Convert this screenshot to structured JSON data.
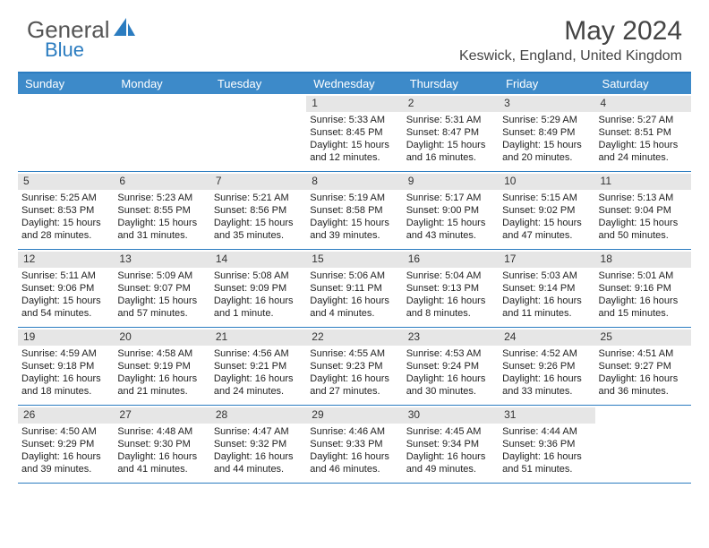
{
  "logo": {
    "word1": "General",
    "word2": "Blue",
    "word1_color": "#555555",
    "word2_color": "#2b7cc0"
  },
  "title": "May 2024",
  "location": "Keswick, England, United Kingdom",
  "header_bg": "#3d8ac9",
  "border_color": "#2b7cc0",
  "daynum_bg": "#e6e6e6",
  "day_names": [
    "Sunday",
    "Monday",
    "Tuesday",
    "Wednesday",
    "Thursday",
    "Friday",
    "Saturday"
  ],
  "weeks": [
    [
      {
        "blank": true
      },
      {
        "blank": true
      },
      {
        "blank": true
      },
      {
        "n": "1",
        "sr": "5:33 AM",
        "ss": "8:45 PM",
        "dh": "15",
        "dm": "12"
      },
      {
        "n": "2",
        "sr": "5:31 AM",
        "ss": "8:47 PM",
        "dh": "15",
        "dm": "16"
      },
      {
        "n": "3",
        "sr": "5:29 AM",
        "ss": "8:49 PM",
        "dh": "15",
        "dm": "20"
      },
      {
        "n": "4",
        "sr": "5:27 AM",
        "ss": "8:51 PM",
        "dh": "15",
        "dm": "24"
      }
    ],
    [
      {
        "n": "5",
        "sr": "5:25 AM",
        "ss": "8:53 PM",
        "dh": "15",
        "dm": "28"
      },
      {
        "n": "6",
        "sr": "5:23 AM",
        "ss": "8:55 PM",
        "dh": "15",
        "dm": "31"
      },
      {
        "n": "7",
        "sr": "5:21 AM",
        "ss": "8:56 PM",
        "dh": "15",
        "dm": "35"
      },
      {
        "n": "8",
        "sr": "5:19 AM",
        "ss": "8:58 PM",
        "dh": "15",
        "dm": "39"
      },
      {
        "n": "9",
        "sr": "5:17 AM",
        "ss": "9:00 PM",
        "dh": "15",
        "dm": "43"
      },
      {
        "n": "10",
        "sr": "5:15 AM",
        "ss": "9:02 PM",
        "dh": "15",
        "dm": "47"
      },
      {
        "n": "11",
        "sr": "5:13 AM",
        "ss": "9:04 PM",
        "dh": "15",
        "dm": "50"
      }
    ],
    [
      {
        "n": "12",
        "sr": "5:11 AM",
        "ss": "9:06 PM",
        "dh": "15",
        "dm": "54"
      },
      {
        "n": "13",
        "sr": "5:09 AM",
        "ss": "9:07 PM",
        "dh": "15",
        "dm": "57"
      },
      {
        "n": "14",
        "sr": "5:08 AM",
        "ss": "9:09 PM",
        "dh": "16",
        "dm": "1",
        "dms": "minute"
      },
      {
        "n": "15",
        "sr": "5:06 AM",
        "ss": "9:11 PM",
        "dh": "16",
        "dm": "4"
      },
      {
        "n": "16",
        "sr": "5:04 AM",
        "ss": "9:13 PM",
        "dh": "16",
        "dm": "8"
      },
      {
        "n": "17",
        "sr": "5:03 AM",
        "ss": "9:14 PM",
        "dh": "16",
        "dm": "11"
      },
      {
        "n": "18",
        "sr": "5:01 AM",
        "ss": "9:16 PM",
        "dh": "16",
        "dm": "15"
      }
    ],
    [
      {
        "n": "19",
        "sr": "4:59 AM",
        "ss": "9:18 PM",
        "dh": "16",
        "dm": "18"
      },
      {
        "n": "20",
        "sr": "4:58 AM",
        "ss": "9:19 PM",
        "dh": "16",
        "dm": "21"
      },
      {
        "n": "21",
        "sr": "4:56 AM",
        "ss": "9:21 PM",
        "dh": "16",
        "dm": "24"
      },
      {
        "n": "22",
        "sr": "4:55 AM",
        "ss": "9:23 PM",
        "dh": "16",
        "dm": "27"
      },
      {
        "n": "23",
        "sr": "4:53 AM",
        "ss": "9:24 PM",
        "dh": "16",
        "dm": "30"
      },
      {
        "n": "24",
        "sr": "4:52 AM",
        "ss": "9:26 PM",
        "dh": "16",
        "dm": "33"
      },
      {
        "n": "25",
        "sr": "4:51 AM",
        "ss": "9:27 PM",
        "dh": "16",
        "dm": "36"
      }
    ],
    [
      {
        "n": "26",
        "sr": "4:50 AM",
        "ss": "9:29 PM",
        "dh": "16",
        "dm": "39"
      },
      {
        "n": "27",
        "sr": "4:48 AM",
        "ss": "9:30 PM",
        "dh": "16",
        "dm": "41"
      },
      {
        "n": "28",
        "sr": "4:47 AM",
        "ss": "9:32 PM",
        "dh": "16",
        "dm": "44"
      },
      {
        "n": "29",
        "sr": "4:46 AM",
        "ss": "9:33 PM",
        "dh": "16",
        "dm": "46"
      },
      {
        "n": "30",
        "sr": "4:45 AM",
        "ss": "9:34 PM",
        "dh": "16",
        "dm": "49"
      },
      {
        "n": "31",
        "sr": "4:44 AM",
        "ss": "9:36 PM",
        "dh": "16",
        "dm": "51"
      },
      {
        "blank": true
      }
    ]
  ]
}
